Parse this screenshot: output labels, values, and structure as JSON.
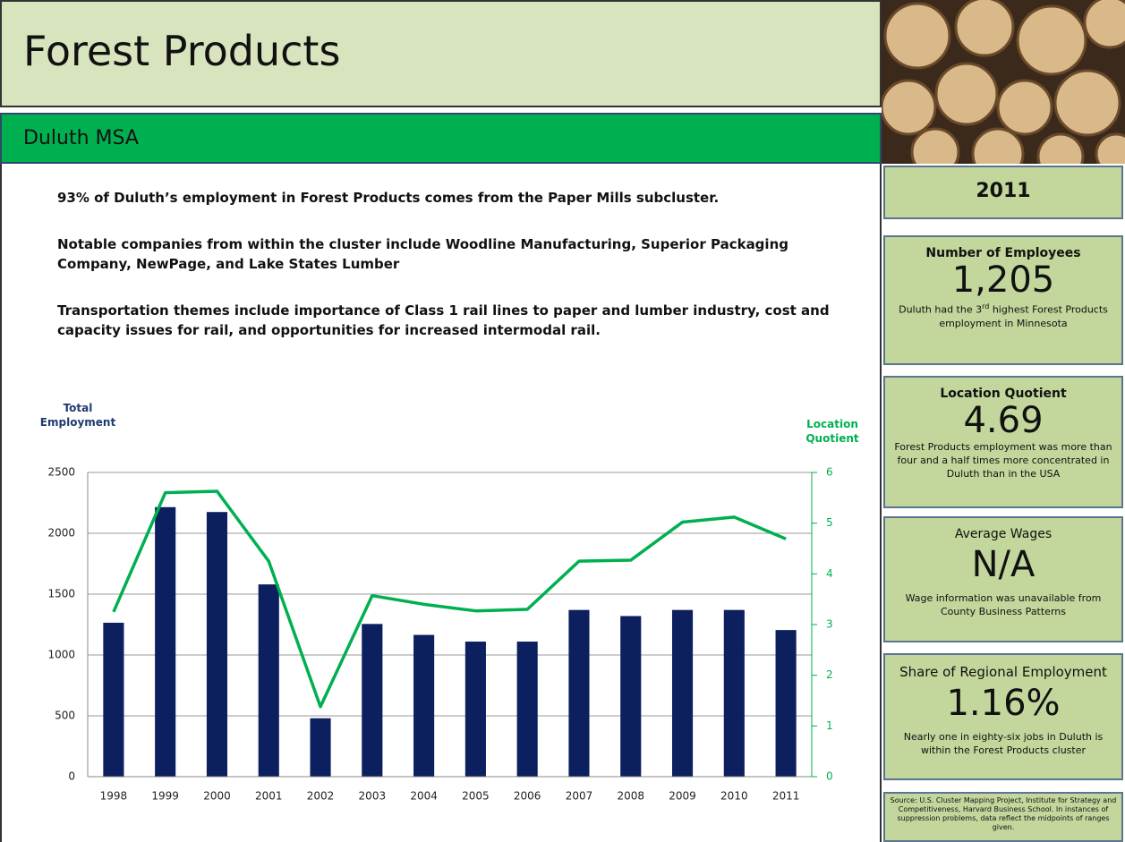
{
  "header": {
    "title": "Forest Products",
    "subtitle": "Duluth MSA"
  },
  "paragraphs": [
    "93% of Duluth’s employment in Forest Products comes from the Paper Mills subcluster.",
    "Notable companies from within the cluster include Woodline Manufacturing, Superior Packaging Company, NewPage, and Lake States Lumber",
    "Transportation themes include importance of Class 1 rail lines to paper and lumber industry, cost and capacity issues for rail, and opportunities for increased intermodal rail."
  ],
  "year": "2011",
  "cards": [
    {
      "heading": "Number of Employees",
      "value": "1,205",
      "note_before": "Duluth had the 3",
      "note_sup": "rd",
      "note_after": " highest Forest Products employment in Minnesota"
    },
    {
      "heading": "Location Quotient",
      "value": "4.69",
      "note": "Forest Products employment was more than four and a half times more concentrated in Duluth than in the USA"
    },
    {
      "heading": "Average Wages",
      "value": "N/A",
      "note": "Wage information was unavailable from County Business Patterns"
    },
    {
      "heading": "Share of Regional Employment",
      "value": "1.16%",
      "note": "Nearly one in eighty-six jobs in Duluth is within the Forest Products cluster"
    }
  ],
  "source": "Source: U.S. Cluster Mapping Project, Institute for Strategy and Competitiveness, Harvard Business School. In instances of suppression problems, data reflect the midpoints of ranges given.",
  "chart_data": {
    "type": "bar_line",
    "y_label": "Total Employment",
    "y2_label": "Location Quotient",
    "categories": [
      "1998",
      "1999",
      "2000",
      "2001",
      "2002",
      "2003",
      "2004",
      "2005",
      "2006",
      "2007",
      "2008",
      "2009",
      "2010",
      "2011"
    ],
    "series": [
      {
        "type": "bar",
        "color": "#0c1f5f",
        "values": [
          1265,
          2215,
          2175,
          1580,
          480,
          1255,
          1165,
          1110,
          1110,
          1370,
          1320,
          1370,
          1370,
          1205
        ]
      },
      {
        "type": "line",
        "axis": "y2",
        "color": "#00b050",
        "values": [
          3.25,
          5.6,
          5.63,
          4.25,
          1.38,
          3.57,
          3.4,
          3.27,
          3.3,
          4.25,
          4.27,
          5.02,
          5.12,
          4.69
        ]
      }
    ],
    "ylim": [
      0,
      2500
    ],
    "yticks": [
      0,
      500,
      1000,
      1500,
      2000,
      2500
    ],
    "y2lim": [
      0,
      6
    ],
    "y2ticks": [
      0,
      1,
      2,
      3,
      4,
      5,
      6
    ],
    "grid": true
  }
}
